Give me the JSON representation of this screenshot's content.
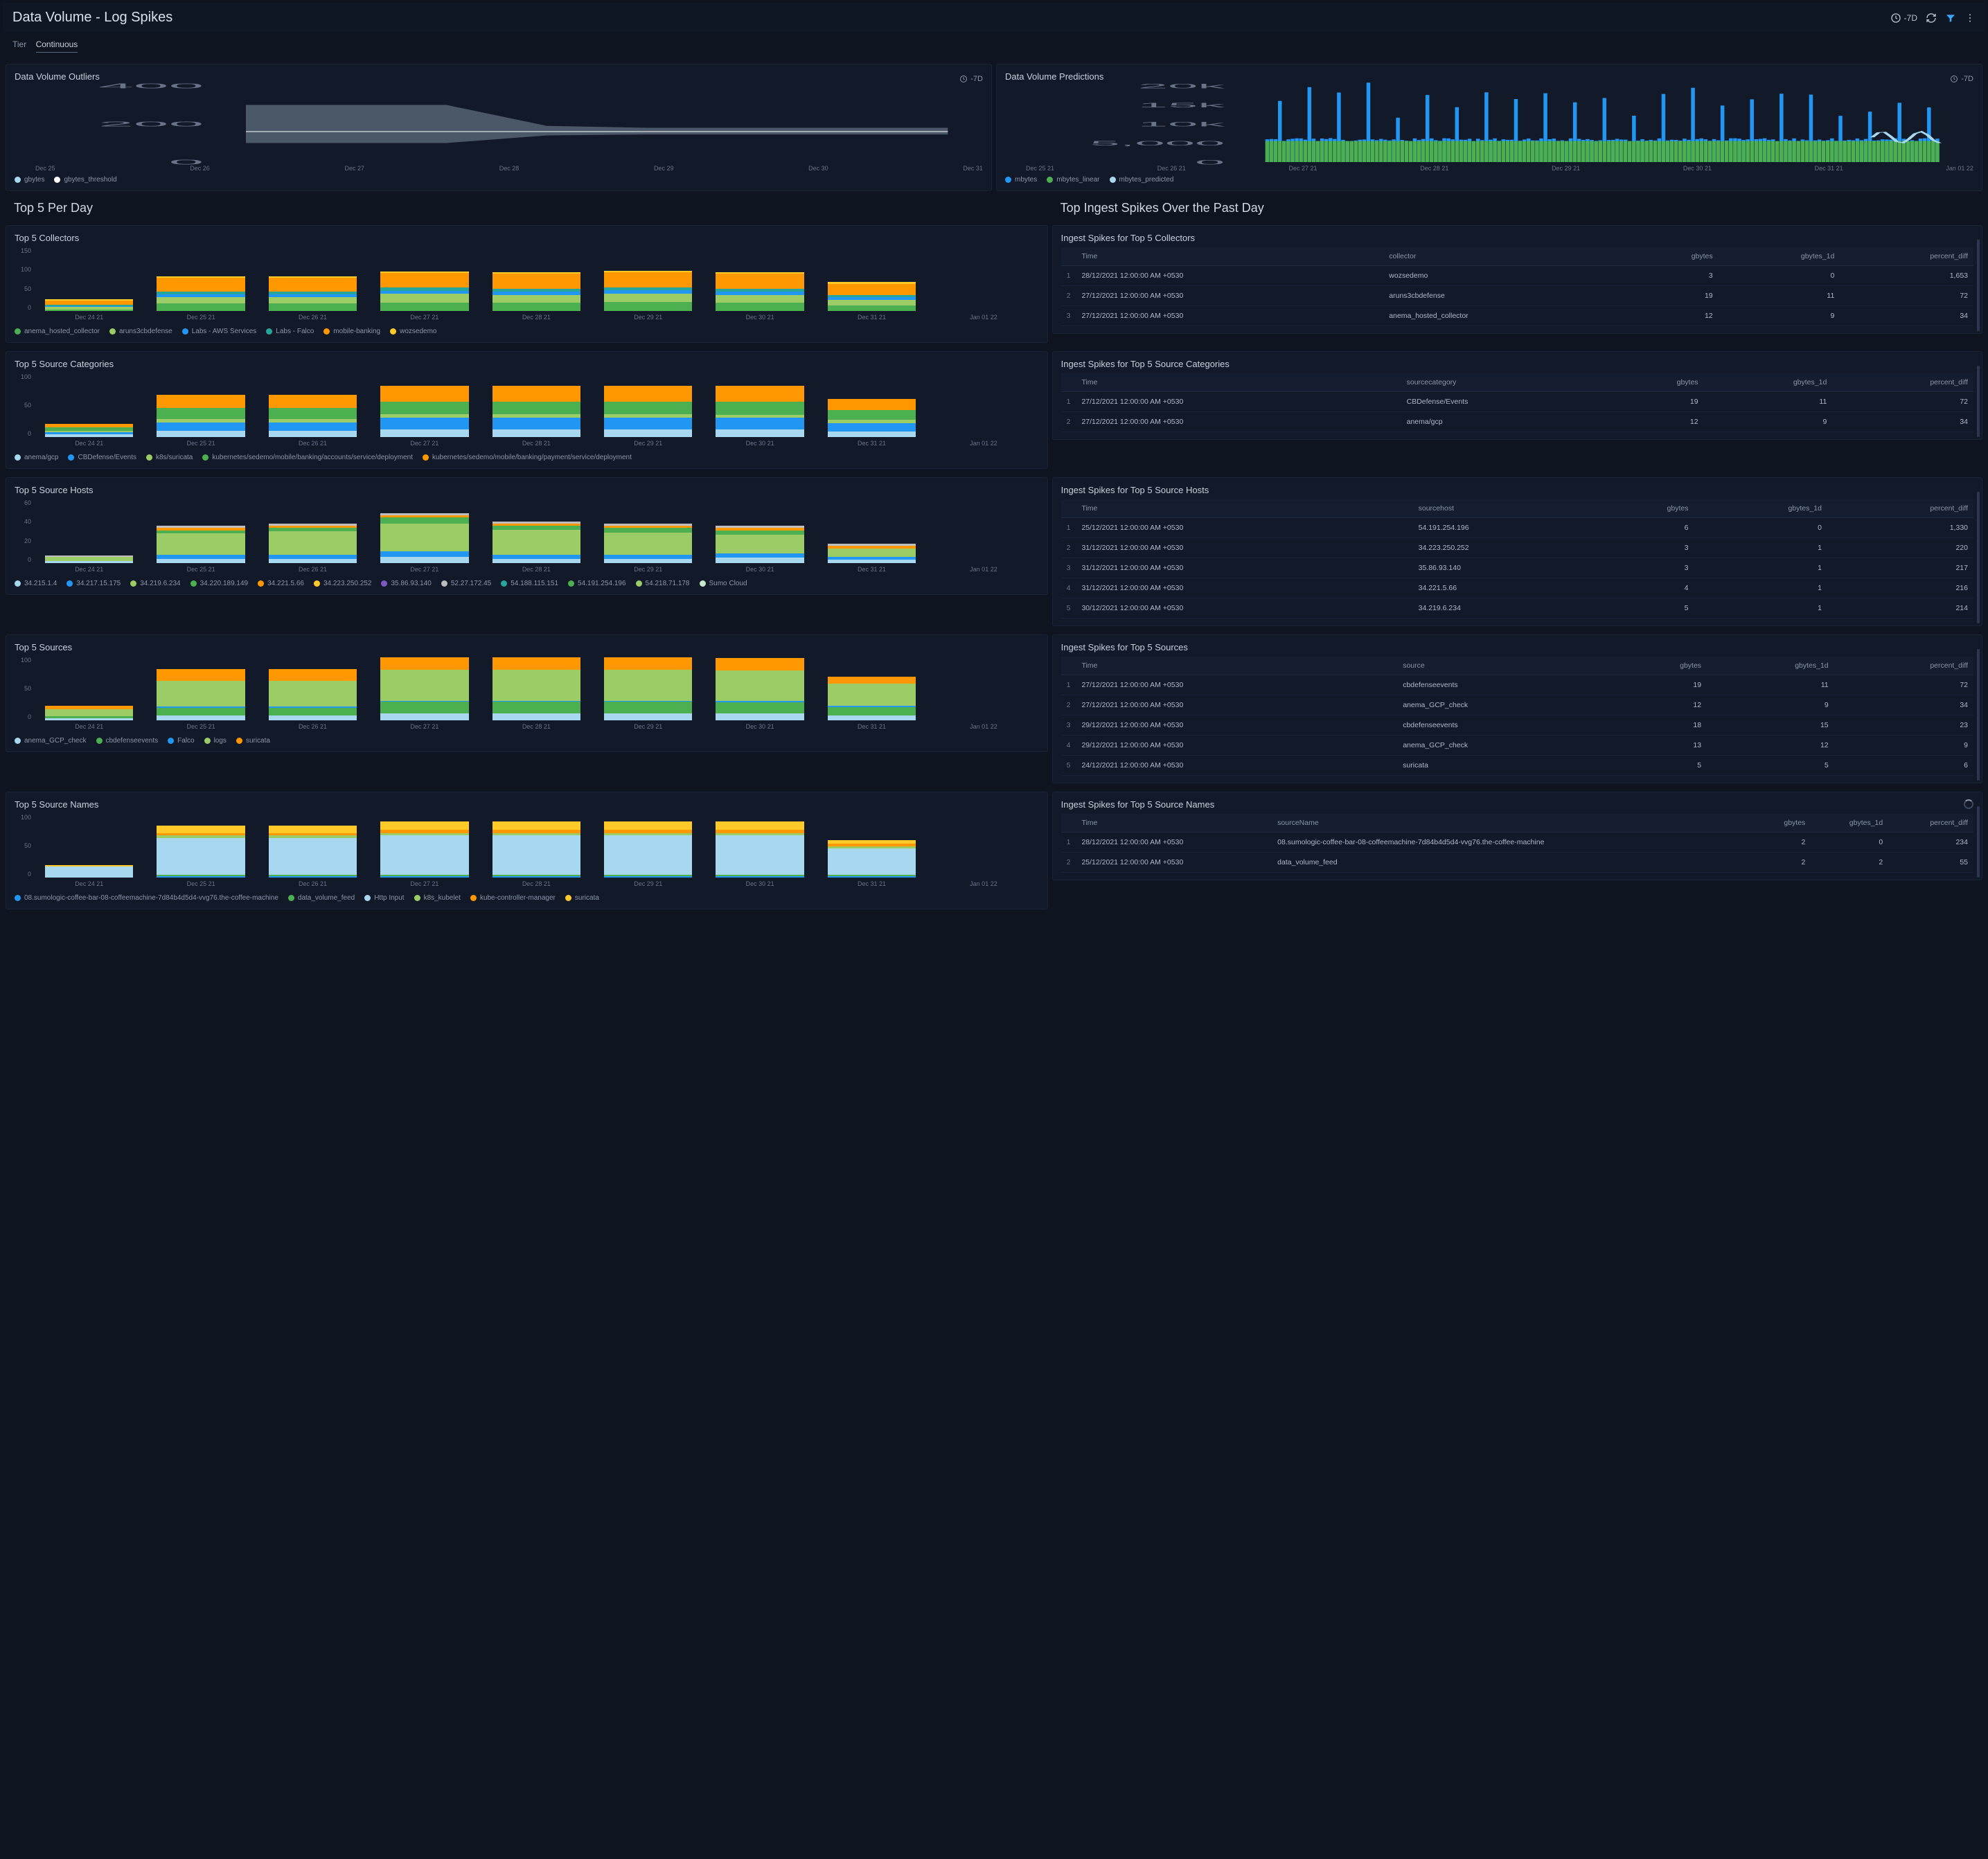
{
  "header": {
    "title": "Data Volume - Log Spikes",
    "range": "-7D"
  },
  "filter": {
    "label": "Tier",
    "value": "Continuous"
  },
  "colors": {
    "panel_bg": "#121a2a",
    "green": "#4caf50",
    "orange": "#ff9800",
    "blue": "#2196f3",
    "teal": "#26a69a",
    "lightgreen": "#9ccc65",
    "lightblue": "#90caf9",
    "yellow": "#ffca28",
    "purple": "#7e57c2",
    "grey": "#78909c",
    "white": "#e0e0e0",
    "lightblue2": "#a8d8f0"
  },
  "outliers": {
    "title": "Data Volume Outliers",
    "range": "-7D",
    "ylim": [
      0,
      400
    ],
    "yticks": [
      "400",
      "200",
      "0"
    ],
    "xticks": [
      "Dec 25",
      "Dec 26",
      "Dec 27",
      "Dec 28",
      "Dec 29",
      "Dec 30",
      "Dec 31"
    ],
    "band_hi": [
      300,
      300,
      300,
      190,
      180,
      180,
      180,
      180
    ],
    "band_lo": [
      100,
      100,
      100,
      140,
      145,
      145,
      145,
      145
    ],
    "line": [
      160,
      160,
      160,
      160,
      160,
      160,
      160,
      160
    ],
    "band_color": "#4a5568",
    "line_color": "#ffffff",
    "legend": [
      {
        "c": "#a8d8f0",
        "l": "gbytes"
      },
      {
        "c": "#ffffff",
        "l": "gbytes_threshold"
      }
    ]
  },
  "predictions": {
    "title": "Data Volume Predictions",
    "range": "-7D",
    "ylim": [
      0,
      20000
    ],
    "yticks": [
      "20k",
      "15k",
      "10k",
      "5,000",
      "0"
    ],
    "xticks": [
      "Dec 25 21",
      "Dec 26 21",
      "Dec 27 21",
      "Dec 28 21",
      "Dec 29 21",
      "Dec 30 21",
      "Dec 31 21",
      "Jan 01 22"
    ],
    "legend": [
      {
        "c": "#2196f3",
        "l": "mbytes"
      },
      {
        "c": "#4caf50",
        "l": "mbytes_linear"
      },
      {
        "c": "#a8d8f0",
        "l": "mbytes_predicted"
      }
    ]
  },
  "section_left": "Top 5 Per Day",
  "section_right": "Top Ingest Spikes Over the Past Day",
  "dates": [
    "Dec 24 21",
    "Dec 25 21",
    "Dec 26 21",
    "Dec 27 21",
    "Dec 28 21",
    "Dec 29 21",
    "Dec 30 21",
    "Dec 31 21",
    "Jan 01 22"
  ],
  "collectors": {
    "title": "Top 5 Collectors",
    "ymax": 150,
    "yticks": [
      "150",
      "100",
      "50",
      "0"
    ],
    "series": [
      {
        "l": "anema_hosted_collector",
        "c": "#4caf50",
        "v": [
          4,
          18,
          18,
          20,
          19,
          21,
          19,
          13
        ]
      },
      {
        "l": "aruns3cbdefense",
        "c": "#9ccc65",
        "v": [
          5,
          14,
          14,
          20,
          19,
          20,
          18,
          13
        ]
      },
      {
        "l": "Labs - AWS Services",
        "c": "#2196f3",
        "v": [
          3,
          7,
          7,
          8,
          8,
          8,
          8,
          6
        ]
      },
      {
        "l": "Labs - Falco",
        "c": "#26a69a",
        "v": [
          3,
          6,
          6,
          7,
          7,
          7,
          7,
          5
        ]
      },
      {
        "l": "mobile-banking",
        "c": "#ff9800",
        "v": [
          10,
          34,
          34,
          35,
          35,
          36,
          36,
          26
        ]
      },
      {
        "l": "wozsedemo",
        "c": "#ffca28",
        "v": [
          2,
          3,
          3,
          3,
          3,
          3,
          3,
          6
        ]
      }
    ],
    "table_title": "Ingest Spikes for Top 5 Collectors",
    "columns": [
      "",
      "Time",
      "collector",
      "gbytes",
      "gbytes_1d",
      "percent_diff"
    ],
    "rows": [
      [
        "1",
        "28/12/2021 12:00:00 AM +0530",
        "wozsedemo",
        "3",
        "0",
        "1,653"
      ],
      [
        "2",
        "27/12/2021 12:00:00 AM +0530",
        "aruns3cbdefense",
        "19",
        "11",
        "72"
      ],
      [
        "3",
        "27/12/2021 12:00:00 AM +0530",
        "anema_hosted_collector",
        "12",
        "9",
        "34"
      ]
    ]
  },
  "categories": {
    "title": "Top 5 Source Categories",
    "ymax": 100,
    "yticks": [
      "100",
      "50",
      "0"
    ],
    "series": [
      {
        "l": "anema/gcp",
        "c": "#a8d8f0",
        "v": [
          4,
          10,
          10,
          12,
          12,
          12,
          12,
          9
        ]
      },
      {
        "l": "CBDefense/Events",
        "c": "#2196f3",
        "v": [
          4,
          13,
          13,
          19,
          19,
          19,
          18,
          13
        ]
      },
      {
        "l": "k8s/suricata",
        "c": "#9ccc65",
        "v": [
          2,
          5,
          5,
          5,
          5,
          5,
          5,
          5
        ]
      },
      {
        "l": "kubernetes/sedemo/mobile/banking/accounts/service/deployment",
        "c": "#4caf50",
        "v": [
          5,
          18,
          18,
          20,
          20,
          20,
          20,
          15
        ]
      },
      {
        "l": "kubernetes/sedemo/mobile/banking/payment/service/deployment",
        "c": "#ff9800",
        "v": [
          6,
          20,
          20,
          25,
          24,
          25,
          25,
          18
        ]
      }
    ],
    "table_title": "Ingest Spikes for Top 5 Source Categories",
    "columns": [
      "",
      "Time",
      "sourcecategory",
      "gbytes",
      "gbytes_1d",
      "percent_diff"
    ],
    "rows": [
      [
        "1",
        "27/12/2021 12:00:00 AM +0530",
        "CBDefense/Events",
        "19",
        "11",
        "72"
      ],
      [
        "2",
        "27/12/2021 12:00:00 AM +0530",
        "anema/gcp",
        "12",
        "9",
        "34"
      ]
    ]
  },
  "hosts": {
    "title": "Top 5 Source Hosts",
    "ymax": 60,
    "yticks": [
      "60",
      "40",
      "20",
      "0"
    ],
    "series": [
      {
        "l": "34.215.1.4",
        "c": "#a8d8f0",
        "v": [
          2,
          4,
          4,
          6,
          4,
          4,
          5,
          3
        ]
      },
      {
        "l": "34.217.15.175",
        "c": "#2196f3",
        "v": [
          0,
          4,
          4,
          5,
          4,
          4,
          4,
          3
        ]
      },
      {
        "l": "34.219.6.234",
        "c": "#9ccc65",
        "v": [
          4,
          20,
          22,
          26,
          23,
          21,
          18,
          8
        ]
      },
      {
        "l": "34.220.189.149",
        "c": "#4caf50",
        "v": [
          0,
          3,
          3,
          6,
          4,
          4,
          4,
          0
        ]
      },
      {
        "l": "34.221.5.66",
        "c": "#ff9800",
        "v": [
          0,
          2,
          2,
          2,
          2,
          2,
          2,
          2
        ]
      },
      {
        "l": "34.223.250.252",
        "c": "#ffca28",
        "v": [
          0,
          0,
          0,
          0,
          0,
          0,
          0,
          0
        ]
      },
      {
        "l": "35.86.93.140",
        "c": "#7e57c2",
        "v": [
          0,
          0,
          0,
          0,
          0,
          0,
          0,
          0
        ]
      },
      {
        "l": "52.27.172.45",
        "c": "#bdbdbd",
        "v": [
          1,
          2,
          2,
          2,
          2,
          2,
          2,
          2
        ]
      },
      {
        "l": "54.188.115.151",
        "c": "#26a69a",
        "v": [
          0,
          0,
          0,
          0,
          0,
          0,
          0,
          0
        ]
      },
      {
        "l": "54.191.254.196",
        "c": "#4caf50",
        "v": [
          0,
          0,
          0,
          0,
          0,
          0,
          0,
          0
        ]
      },
      {
        "l": "54.218.71.178",
        "c": "#9ccc65",
        "v": [
          0,
          0,
          0,
          0,
          0,
          0,
          0,
          0
        ]
      },
      {
        "l": "Sumo Cloud",
        "c": "#c8e6c9",
        "v": [
          0,
          0,
          0,
          0,
          0,
          0,
          0,
          0
        ]
      }
    ],
    "table_title": "Ingest Spikes for Top 5 Source Hosts",
    "columns": [
      "",
      "Time",
      "sourcehost",
      "gbytes",
      "gbytes_1d",
      "percent_diff"
    ],
    "rows": [
      [
        "1",
        "25/12/2021 12:00:00 AM +0530",
        "54.191.254.196",
        "6",
        "0",
        "1,330"
      ],
      [
        "2",
        "31/12/2021 12:00:00 AM +0530",
        "34.223.250.252",
        "3",
        "1",
        "220"
      ],
      [
        "3",
        "31/12/2021 12:00:00 AM +0530",
        "35.86.93.140",
        "3",
        "1",
        "217"
      ],
      [
        "4",
        "31/12/2021 12:00:00 AM +0530",
        "34.221.5.66",
        "4",
        "1",
        "216"
      ],
      [
        "5",
        "30/12/2021 12:00:00 AM +0530",
        "34.219.6.234",
        "5",
        "1",
        "214"
      ]
    ]
  },
  "sources": {
    "title": "Top 5 Sources",
    "ymax": 100,
    "yticks": [
      "100",
      "50",
      "0"
    ],
    "series": [
      {
        "l": "anema_GCP_check",
        "c": "#a8d8f0",
        "v": [
          3,
          8,
          8,
          11,
          11,
          11,
          11,
          8
        ]
      },
      {
        "l": "cbdefenseevents",
        "c": "#4caf50",
        "v": [
          4,
          12,
          12,
          18,
          18,
          18,
          17,
          13
        ]
      },
      {
        "l": "Falco",
        "c": "#2196f3",
        "v": [
          0,
          2,
          2,
          2,
          2,
          2,
          2,
          2
        ]
      },
      {
        "l": "logs",
        "c": "#9ccc65",
        "v": [
          10,
          40,
          40,
          48,
          48,
          48,
          48,
          35
        ]
      },
      {
        "l": "suricata",
        "c": "#ff9800",
        "v": [
          6,
          18,
          18,
          20,
          20,
          20,
          20,
          10
        ]
      }
    ],
    "table_title": "Ingest Spikes for Top 5 Sources",
    "columns": [
      "",
      "Time",
      "source",
      "gbytes",
      "gbytes_1d",
      "percent_diff"
    ],
    "rows": [
      [
        "1",
        "27/12/2021 12:00:00 AM +0530",
        "cbdefenseevents",
        "19",
        "11",
        "72"
      ],
      [
        "2",
        "27/12/2021 12:00:00 AM +0530",
        "anema_GCP_check",
        "12",
        "9",
        "34"
      ],
      [
        "3",
        "29/12/2021 12:00:00 AM +0530",
        "cbdefenseevents",
        "18",
        "15",
        "23"
      ],
      [
        "4",
        "29/12/2021 12:00:00 AM +0530",
        "anema_GCP_check",
        "13",
        "12",
        "9"
      ],
      [
        "5",
        "24/12/2021 12:00:00 AM +0530",
        "suricata",
        "5",
        "5",
        "6"
      ]
    ]
  },
  "sourcenames": {
    "title": "Top 5 Source Names",
    "ymax": 100,
    "yticks": [
      "100",
      "50",
      "0"
    ],
    "series": [
      {
        "l": "08.sumologic-coffee-bar-08-coffeemachine-7d84b4d5d4-vvg76.the-coffee-machine",
        "c": "#2196f3",
        "v": [
          0,
          2,
          2,
          2,
          2,
          2,
          2,
          2
        ]
      },
      {
        "l": "data_volume_feed",
        "c": "#4caf50",
        "v": [
          0,
          2,
          2,
          2,
          2,
          2,
          2,
          2
        ]
      },
      {
        "l": "Http Input",
        "c": "#a8d8f0",
        "v": [
          17,
          58,
          58,
          62,
          62,
          62,
          62,
          42
        ]
      },
      {
        "l": "k8s_kubelet",
        "c": "#9ccc65",
        "v": [
          0,
          4,
          4,
          4,
          4,
          4,
          4,
          3
        ]
      },
      {
        "l": "kube-controller-manager",
        "c": "#ff9800",
        "v": [
          0,
          4,
          4,
          5,
          5,
          5,
          5,
          4
        ]
      },
      {
        "l": "suricata",
        "c": "#ffca28",
        "v": [
          3,
          12,
          12,
          13,
          13,
          13,
          13,
          6
        ]
      }
    ],
    "table_title": "Ingest Spikes for Top 5 Source Names",
    "columns": [
      "",
      "Time",
      "sourceName",
      "gbytes",
      "gbytes_1d",
      "percent_diff"
    ],
    "rows": [
      [
        "1",
        "28/12/2021 12:00:00 AM +0530",
        "08.sumologic-coffee-bar-08-coffeemachine-7d84b4d5d4-vvg76.the-coffee-machine",
        "2",
        "0",
        "234"
      ],
      [
        "2",
        "25/12/2021 12:00:00 AM +0530",
        "data_volume_feed",
        "2",
        "2",
        "55"
      ]
    ]
  }
}
